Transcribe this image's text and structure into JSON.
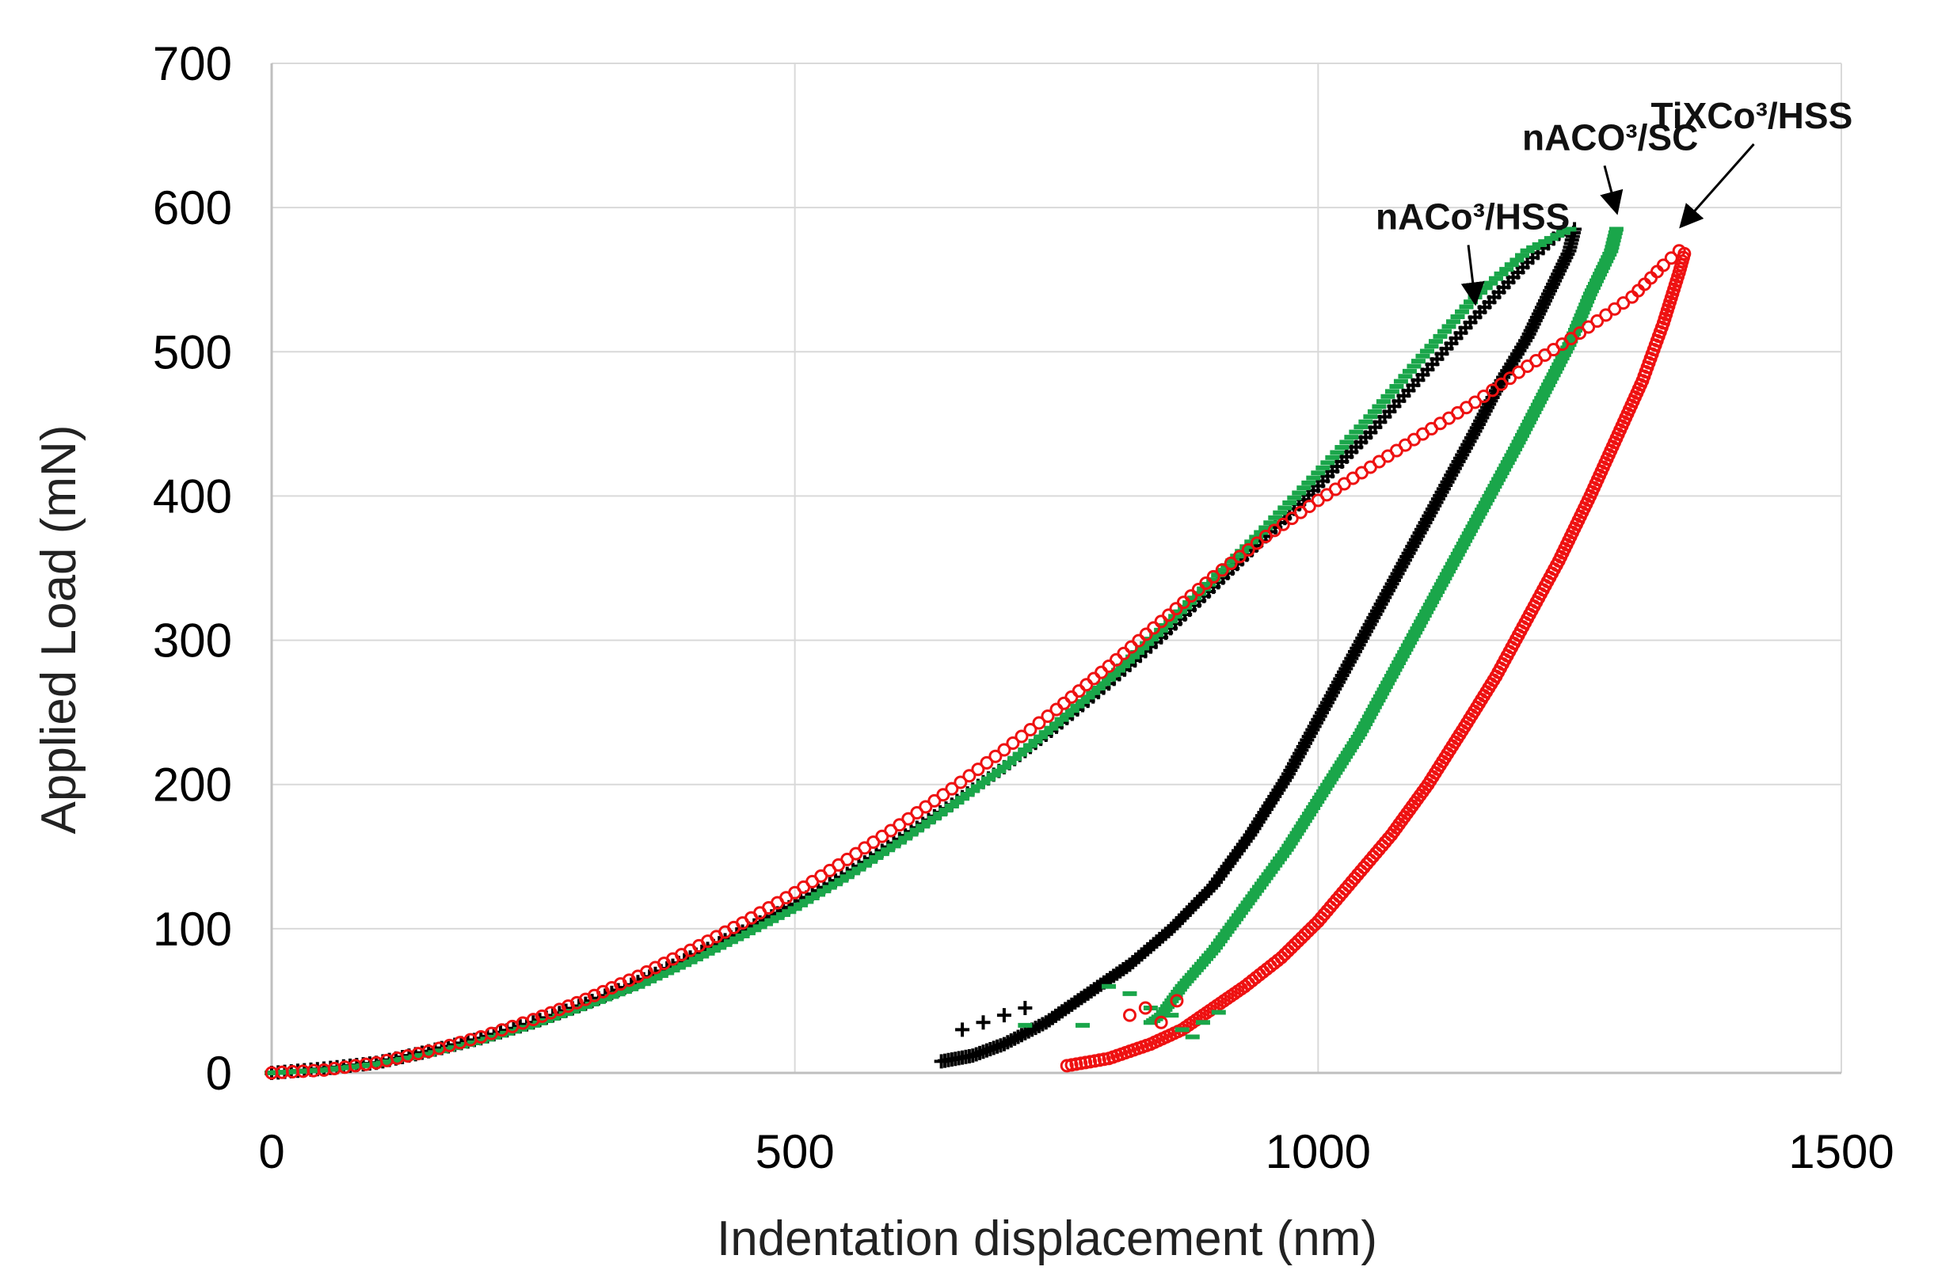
{
  "chart_data": {
    "type": "scatter",
    "title": "",
    "xlabel": "Indentation displacement (nm)",
    "ylabel": "Applied Load  (mN)",
    "xlim": [
      0,
      1500
    ],
    "ylim": [
      0,
      700
    ],
    "xticks": [
      0,
      500,
      1000,
      1500
    ],
    "yticks": [
      0,
      100,
      200,
      300,
      400,
      500,
      600,
      700
    ],
    "grid": true,
    "legend": "none",
    "colors": {
      "black": "#000000",
      "green": "#1aa64a",
      "red": "#ee1111",
      "grid": "#d9d9d9",
      "axis": "#bfbfbf"
    },
    "series": [
      {
        "name": "nACo3/HSS",
        "color": "#000000",
        "marker": "cross",
        "loading": [
          [
            0,
            0
          ],
          [
            50,
            3
          ],
          [
            100,
            7
          ],
          [
            150,
            15
          ],
          [
            200,
            24
          ],
          [
            250,
            35
          ],
          [
            300,
            48
          ],
          [
            350,
            63
          ],
          [
            400,
            80
          ],
          [
            450,
            98
          ],
          [
            500,
            117
          ],
          [
            550,
            138
          ],
          [
            600,
            162
          ],
          [
            650,
            186
          ],
          [
            700,
            212
          ],
          [
            750,
            240
          ],
          [
            800,
            270
          ],
          [
            850,
            302
          ],
          [
            900,
            337
          ],
          [
            950,
            372
          ],
          [
            1000,
            407
          ],
          [
            1050,
            444
          ],
          [
            1100,
            484
          ],
          [
            1150,
            524
          ],
          [
            1200,
            562
          ],
          [
            1235,
            585
          ]
        ],
        "unloading": [
          [
            1245,
            585
          ],
          [
            1240,
            570
          ],
          [
            1220,
            540
          ],
          [
            1200,
            510
          ],
          [
            1175,
            480
          ],
          [
            1150,
            445
          ],
          [
            1120,
            405
          ],
          [
            1090,
            365
          ],
          [
            1060,
            325
          ],
          [
            1030,
            285
          ],
          [
            1000,
            245
          ],
          [
            970,
            205
          ],
          [
            935,
            165
          ],
          [
            900,
            130
          ],
          [
            860,
            100
          ],
          [
            820,
            75
          ],
          [
            780,
            55
          ],
          [
            740,
            35
          ],
          [
            700,
            20
          ],
          [
            670,
            12
          ],
          [
            640,
            8
          ]
        ]
      },
      {
        "name": "nACO3/SC",
        "color": "#1aa64a",
        "marker": "dash",
        "loading": [
          [
            0,
            0
          ],
          [
            50,
            2
          ],
          [
            100,
            6
          ],
          [
            150,
            13
          ],
          [
            200,
            22
          ],
          [
            250,
            33
          ],
          [
            300,
            46
          ],
          [
            350,
            60
          ],
          [
            400,
            77
          ],
          [
            450,
            95
          ],
          [
            500,
            114
          ],
          [
            550,
            136
          ],
          [
            600,
            160
          ],
          [
            650,
            185
          ],
          [
            700,
            212
          ],
          [
            750,
            242
          ],
          [
            800,
            273
          ],
          [
            850,
            307
          ],
          [
            900,
            342
          ],
          [
            950,
            378
          ],
          [
            1000,
            416
          ],
          [
            1050,
            455
          ],
          [
            1100,
            497
          ],
          [
            1150,
            538
          ],
          [
            1200,
            570
          ],
          [
            1240,
            585
          ]
        ],
        "unloading": [
          [
            1285,
            585
          ],
          [
            1280,
            570
          ],
          [
            1260,
            540
          ],
          [
            1240,
            505
          ],
          [
            1215,
            470
          ],
          [
            1190,
            435
          ],
          [
            1160,
            395
          ],
          [
            1130,
            355
          ],
          [
            1100,
            315
          ],
          [
            1070,
            275
          ],
          [
            1040,
            235
          ],
          [
            1005,
            195
          ],
          [
            970,
            155
          ],
          [
            935,
            120
          ],
          [
            900,
            85
          ],
          [
            870,
            60
          ],
          [
            850,
            40
          ],
          [
            840,
            35
          ]
        ]
      },
      {
        "name": "TiXCo3/HSS",
        "color": "#ee1111",
        "marker": "circle",
        "loading": [
          [
            0,
            0
          ],
          [
            50,
            2
          ],
          [
            100,
            7
          ],
          [
            150,
            15
          ],
          [
            200,
            25
          ],
          [
            250,
            37
          ],
          [
            300,
            51
          ],
          [
            350,
            67
          ],
          [
            400,
            85
          ],
          [
            450,
            104
          ],
          [
            500,
            125
          ],
          [
            550,
            148
          ],
          [
            600,
            172
          ],
          [
            650,
            197
          ],
          [
            700,
            224
          ],
          [
            750,
            252
          ],
          [
            800,
            282
          ],
          [
            850,
            313
          ],
          [
            900,
            344
          ],
          [
            950,
            372
          ],
          [
            1000,
            397
          ],
          [
            1050,
            420
          ],
          [
            1100,
            443
          ],
          [
            1150,
            465
          ],
          [
            1200,
            490
          ],
          [
            1250,
            513
          ],
          [
            1300,
            538
          ],
          [
            1330,
            560
          ],
          [
            1345,
            570
          ]
        ],
        "unloading": [
          [
            1350,
            568
          ],
          [
            1345,
            555
          ],
          [
            1330,
            520
          ],
          [
            1310,
            480
          ],
          [
            1285,
            440
          ],
          [
            1260,
            400
          ],
          [
            1230,
            355
          ],
          [
            1200,
            315
          ],
          [
            1170,
            275
          ],
          [
            1140,
            240
          ],
          [
            1105,
            200
          ],
          [
            1070,
            165
          ],
          [
            1035,
            135
          ],
          [
            1000,
            105
          ],
          [
            965,
            80
          ],
          [
            930,
            60
          ],
          [
            900,
            45
          ],
          [
            870,
            30
          ],
          [
            840,
            20
          ],
          [
            800,
            10
          ],
          [
            760,
            5
          ]
        ]
      }
    ],
    "annotations": [
      {
        "text": "nACo³/HSS",
        "x": 1055,
        "y": 585,
        "target": [
          1150,
          535
        ]
      },
      {
        "text": "nACO³/SC",
        "x": 1195,
        "y": 640,
        "target": [
          1285,
          598
        ]
      },
      {
        "text": "TiXCo³/HSS",
        "x": 1318,
        "y": 655,
        "target": [
          1348,
          588
        ]
      }
    ]
  }
}
